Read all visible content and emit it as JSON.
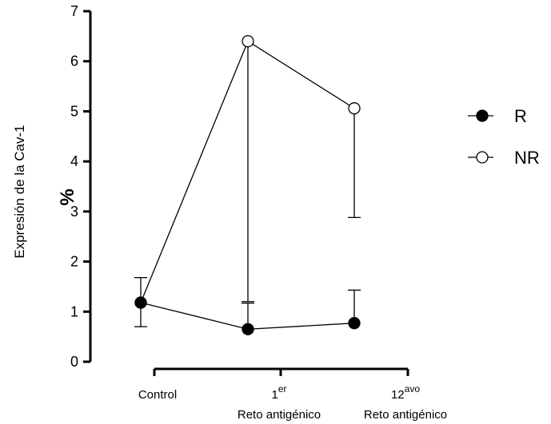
{
  "chart_data": {
    "type": "line",
    "ylabel": "Expresión de la Cav-1",
    "ylabel_unit": "%",
    "ylim": [
      0,
      7
    ],
    "yticks": [
      "0",
      "1",
      "2",
      "3",
      "4",
      "5",
      "6",
      "7"
    ],
    "categories": [
      {
        "main": "Control",
        "sup": "",
        "sub": ""
      },
      {
        "main": "1",
        "sup": "er",
        "sub": "Reto antigénico"
      },
      {
        "main": "12",
        "sup": "avo",
        "sub": "Reto antigénico"
      }
    ],
    "series": [
      {
        "name": "R",
        "marker": "filled",
        "values": [
          1.18,
          0.65,
          0.77
        ],
        "error_down": [
          0.48,
          0,
          0
        ],
        "error_up": [
          0.5,
          0.52,
          0.66
        ]
      },
      {
        "name": "NR",
        "marker": "open",
        "values": [
          1.18,
          6.4,
          5.06
        ],
        "error_down": [
          0,
          5.2,
          2.18
        ],
        "error_up": [
          0,
          0,
          0
        ]
      }
    ],
    "legend": {
      "position": "right",
      "items": [
        "R",
        "NR"
      ]
    }
  }
}
